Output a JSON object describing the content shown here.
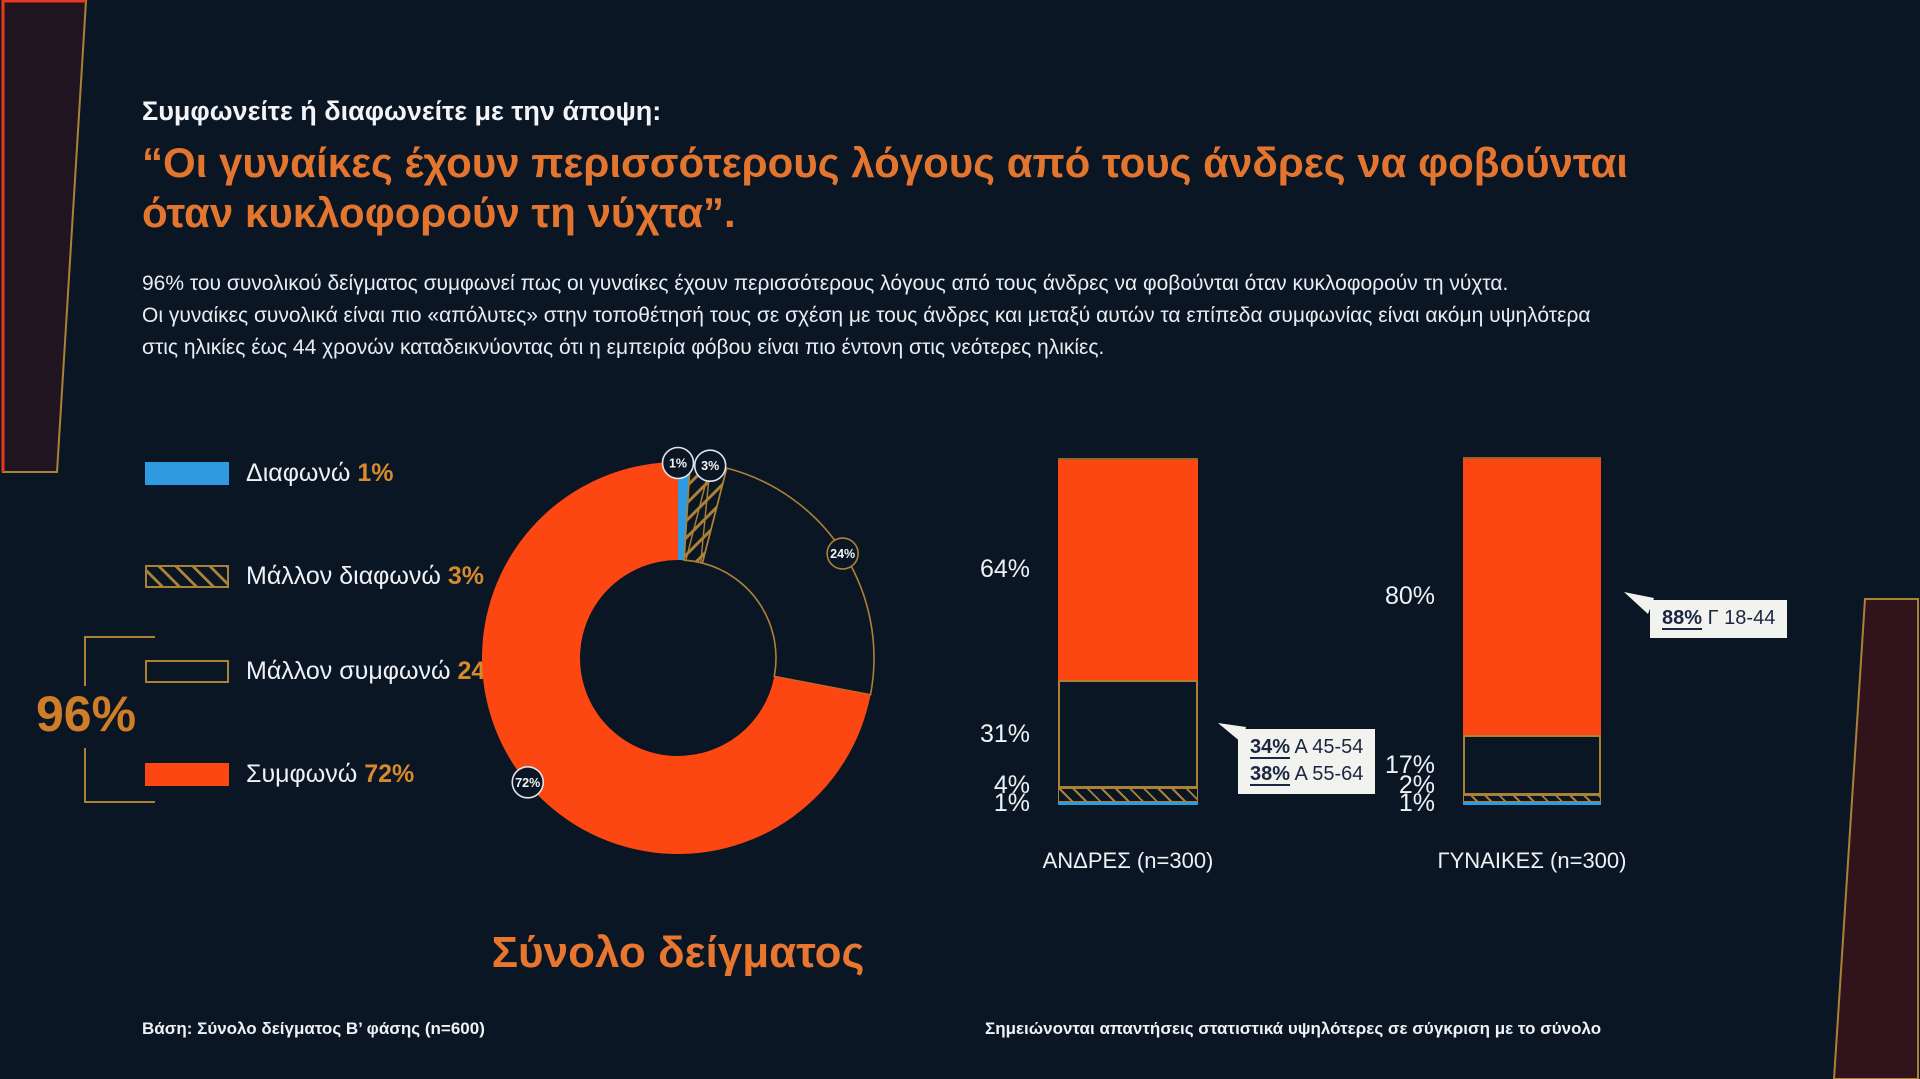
{
  "header": {
    "kicker": "Συμφωνείτε ή διαφωνείτε με την άποψη:",
    "quote_line1": "“Οι γυναίκες έχουν περισσότερους λόγους από τους άνδρες να φοβούνται",
    "quote_line2": "όταν κυκλοφορούν τη νύχτα”.",
    "body_lines": [
      "96% του συνολικού δείγματος συμφωνεί πως οι γυναίκες έχουν περισσότερους λόγους από τους άνδρες να φοβούνται όταν κυκλοφορούν τη νύχτα.",
      "Οι γυναίκες συνολικά είναι πιο «απόλυτες» στην τοποθέτησή τους σε σχέση με τους άνδρες και μεταξύ αυτών τα επίπεδα συμφωνίας είναι ακόμη υψηλότερα",
      "στις ηλικίες έως 44 χρονών καταδεικνύοντας ότι η εμπειρία φόβου είναι πιο έντονη στις νεότερες ηλικίες."
    ]
  },
  "legend": {
    "items": [
      {
        "label": "Διαφωνώ",
        "pct": "1%",
        "style": "blue"
      },
      {
        "label": "Μάλλον διαφωνώ",
        "pct": "3%",
        "style": "hatch"
      },
      {
        "label": "Μάλλον συμφωνώ",
        "pct": "24%",
        "style": "outline"
      },
      {
        "label": "Συμφωνώ",
        "pct": "72%",
        "style": "orange"
      }
    ],
    "agree_total": "96%"
  },
  "chart_data": [
    {
      "type": "pie",
      "subtype": "donut",
      "title": "Σύνολο δείγματος",
      "labels": [
        "Διαφωνώ",
        "Μάλλον διαφωνώ",
        "Μάλλον συμφωνώ",
        "Συμφωνώ"
      ],
      "values": [
        1,
        3,
        24,
        72
      ],
      "unit": "%",
      "slice_labels": [
        "1%",
        "3%",
        "24%",
        "72%"
      ],
      "styles": [
        "solid-blue",
        "hatched",
        "outline",
        "solid-orange"
      ],
      "annotation": "96%"
    },
    {
      "type": "bar",
      "stacked": true,
      "unit": "%",
      "categories": [
        "ΑΝΔΡΕΣ (n=300)",
        "ΓΥΝΑΙΚΕΣ (n=300)"
      ],
      "series": [
        {
          "name": "Συμφωνώ",
          "style": "solid-orange",
          "values": [
            64,
            80
          ]
        },
        {
          "name": "Μάλλον συμφωνώ",
          "style": "outline",
          "values": [
            31,
            17
          ]
        },
        {
          "name": "Μάλλον διαφωνώ",
          "style": "hatched",
          "values": [
            4,
            2
          ]
        },
        {
          "name": "Διαφωνώ",
          "style": "solid-blue",
          "values": [
            1,
            1
          ]
        }
      ],
      "value_labels": [
        [
          "64%",
          "31%",
          "4%",
          "1%"
        ],
        [
          "80%",
          "17%",
          "2%",
          "1%"
        ]
      ],
      "ylim": [
        0,
        100
      ],
      "callouts": [
        {
          "category": "ΑΝΔΡΕΣ (n=300)",
          "rows": [
            {
              "pct": "34%",
              "group": "Α 45-54"
            },
            {
              "pct": "38%",
              "group": "Α 55-64"
            }
          ]
        },
        {
          "category": "ΓΥΝΑΙΚΕΣ (n=300)",
          "rows": [
            {
              "pct": "88%",
              "group": "Γ 18-44"
            }
          ]
        }
      ]
    }
  ],
  "footer": {
    "left": "Βάση: Σύνολο δείγματος Β’ φάσης (n=600)",
    "right": "Σημειώνονται απαντήσεις στατιστικά υψηλότερες σε σύγκριση με το σύνολο"
  },
  "colors": {
    "background": "#0b1624",
    "orange": "#fd4712",
    "heading_orange": "#e4752e",
    "gold": "#ab8136",
    "blue": "#2e9be0",
    "red_edge": "#e8391c",
    "callout_bg": "#f2f2ef",
    "callout_text": "#1b2740"
  }
}
